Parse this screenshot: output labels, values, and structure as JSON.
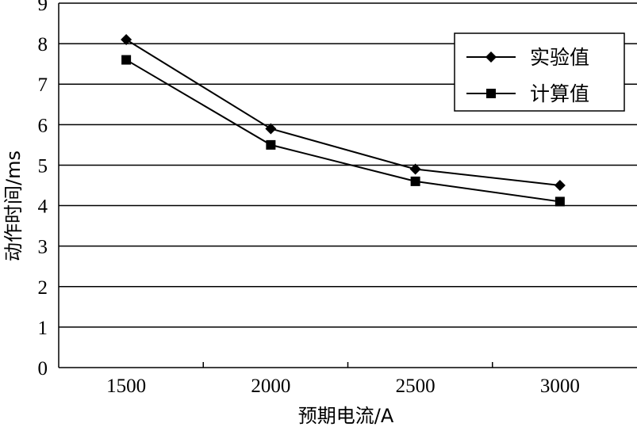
{
  "chart_data": {
    "type": "line",
    "xlabel": "预期电流/A",
    "ylabel": "动作时间/ms",
    "categories": [
      "1500",
      "2000",
      "2500",
      "3000"
    ],
    "ylim": [
      0,
      9
    ],
    "yticks": [
      "0",
      "1",
      "2",
      "3",
      "4",
      "5",
      "6",
      "7",
      "8",
      "9"
    ],
    "grid": "horizontal",
    "legend_position": "top-right",
    "series": [
      {
        "name": "实验值",
        "marker": "diamond",
        "values": [
          8.1,
          5.9,
          4.9,
          4.5
        ]
      },
      {
        "name": "计算值",
        "marker": "square",
        "values": [
          7.6,
          5.5,
          4.6,
          4.1
        ]
      }
    ]
  }
}
